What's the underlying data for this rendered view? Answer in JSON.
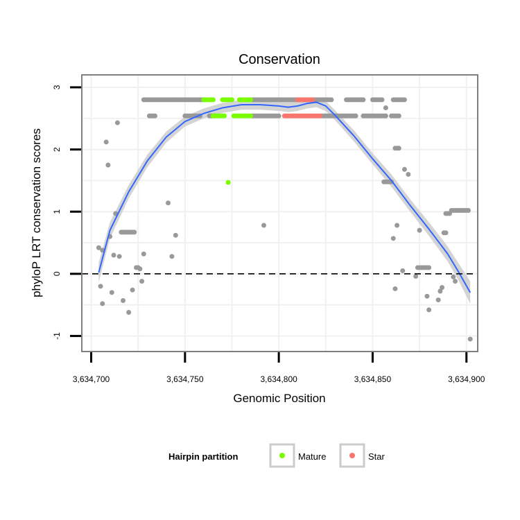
{
  "chart_data": {
    "type": "scatter",
    "title": "Conservation",
    "xlabel": "Genomic Position",
    "ylabel": "phyloP LRT conservation scores",
    "xlim": [
      3634695,
      3634906
    ],
    "ylim": [
      -1.25,
      3.2
    ],
    "x_ticks": [
      3634700,
      3634750,
      3634800,
      3634850,
      3634900
    ],
    "x_tick_labels": [
      "3,634,700",
      "3,634,750",
      "3,634,800",
      "3,634,850",
      "3,634,900"
    ],
    "y_ticks": [
      -1,
      0,
      1,
      2,
      3
    ],
    "y_tick_labels": [
      "-1",
      "0",
      "1",
      "2",
      "3"
    ],
    "grid": true,
    "reference_line": {
      "y": 0,
      "style": "dashed"
    },
    "colors": {
      "other": "#999999",
      "mature": "#7CFC00",
      "star": "#F8766D",
      "smooth": "#3366FF",
      "ribbon": "#cccccc",
      "panel_border": "#7f7f7f",
      "grid": "#f0f0f0"
    },
    "legend": {
      "title": "Hairpin partition",
      "position": "bottom",
      "entries": [
        {
          "label": "Mature",
          "color": "#7CFC00"
        },
        {
          "label": "Star",
          "color": "#F8766D"
        }
      ]
    },
    "series": [
      {
        "name": "Other",
        "points": [
          [
            3634704,
            0.42
          ],
          [
            3634705,
            -0.2
          ],
          [
            3634706,
            -0.48
          ],
          [
            3634706,
            0.38
          ],
          [
            3634708,
            2.12
          ],
          [
            3634709,
            1.75
          ],
          [
            3634710,
            0.6
          ],
          [
            3634711,
            -0.3
          ],
          [
            3634712,
            0.3
          ],
          [
            3634713,
            0.97
          ],
          [
            3634714,
            2.43
          ],
          [
            3634715,
            0.28
          ],
          [
            3634716,
            0.67
          ],
          [
            3634717,
            0.67
          ],
          [
            3634717,
            -0.43
          ],
          [
            3634718,
            0.67
          ],
          [
            3634719,
            0.67
          ],
          [
            3634720,
            -0.62
          ],
          [
            3634720,
            0.67
          ],
          [
            3634721,
            0.67
          ],
          [
            3634722,
            -0.26
          ],
          [
            3634722,
            0.67
          ],
          [
            3634723,
            0.67
          ],
          [
            3634724,
            0.1
          ],
          [
            3634725,
            0.1
          ],
          [
            3634726,
            0.08
          ],
          [
            3634727,
            -0.12
          ],
          [
            3634728,
            0.32
          ],
          [
            3634741,
            1.14
          ],
          [
            3634743,
            0.28
          ],
          [
            3634745,
            0.62
          ],
          [
            3634792,
            0.78
          ],
          [
            3634857,
            2.67
          ],
          [
            3634861,
            0.57
          ],
          [
            3634862,
            -0.24
          ],
          [
            3634863,
            0.78
          ],
          [
            3634866,
            0.05
          ],
          [
            3634867,
            1.68
          ],
          [
            3634869,
            1.6
          ],
          [
            3634875,
            0.7
          ],
          [
            3634873,
            -0.04
          ],
          [
            3634879,
            -0.36
          ],
          [
            3634880,
            -0.58
          ],
          [
            3634885,
            -0.42
          ],
          [
            3634886,
            -0.28
          ],
          [
            3634887,
            -0.22
          ],
          [
            3634888,
            0.66
          ],
          [
            3634889,
            0.66
          ],
          [
            3634893,
            -0.05
          ],
          [
            3634894,
            -0.12
          ],
          [
            3634902,
            -1.05
          ]
        ],
        "segments": [
          {
            "y": 2.8,
            "x": [
              3634728,
              3634760
            ]
          },
          {
            "y": 2.8,
            "x": [
              3634786,
              3634828
            ]
          },
          {
            "y": 2.8,
            "x": [
              3634836,
              3634845
            ]
          },
          {
            "y": 2.8,
            "x": [
              3634850,
              3634855
            ]
          },
          {
            "y": 2.8,
            "x": [
              3634861,
              3634867
            ]
          },
          {
            "y": 2.54,
            "x": [
              3634731,
              3634734
            ]
          },
          {
            "y": 2.54,
            "x": [
              3634750,
              3634758
            ]
          },
          {
            "y": 2.54,
            "x": [
              3634763,
              3634766
            ]
          },
          {
            "y": 2.54,
            "x": [
              3634786,
              3634800
            ]
          },
          {
            "y": 2.54,
            "x": [
              3634823,
              3634841
            ]
          },
          {
            "y": 2.54,
            "x": [
              3634845,
              3634857
            ]
          },
          {
            "y": 2.54,
            "x": [
              3634860,
              3634864
            ]
          },
          {
            "y": 2.02,
            "x": [
              3634862,
              3634864
            ]
          },
          {
            "y": 1.48,
            "x": [
              3634856,
              3634860
            ]
          },
          {
            "y": 0.1,
            "x": [
              3634874,
              3634880
            ]
          },
          {
            "y": 0.97,
            "x": [
              3634889,
              3634891
            ]
          },
          {
            "y": 1.02,
            "x": [
              3634892,
              3634901
            ]
          }
        ]
      },
      {
        "name": "Mature",
        "points": [
          [
            3634773,
            1.47
          ]
        ],
        "segments": [
          {
            "y": 2.8,
            "x": [
              3634760,
              3634765
            ]
          },
          {
            "y": 2.8,
            "x": [
              3634770,
              3634775
            ]
          },
          {
            "y": 2.8,
            "x": [
              3634779,
              3634785
            ]
          },
          {
            "y": 2.54,
            "x": [
              3634765,
              3634771
            ]
          },
          {
            "y": 2.54,
            "x": [
              3634776,
              3634785
            ]
          }
        ]
      },
      {
        "name": "Star",
        "points": [],
        "segments": [
          {
            "y": 2.8,
            "x": [
              3634810,
              3634818
            ]
          },
          {
            "y": 2.54,
            "x": [
              3634803,
              3634822
            ]
          }
        ]
      }
    ],
    "smooth": {
      "x": [
        3634704,
        3634710,
        3634720,
        3634730,
        3634740,
        3634750,
        3634760,
        3634770,
        3634780,
        3634790,
        3634800,
        3634805,
        3634810,
        3634815,
        3634820,
        3634825,
        3634830,
        3634840,
        3634850,
        3634860,
        3634870,
        3634880,
        3634890,
        3634896,
        3634902
      ],
      "y": [
        0.02,
        0.7,
        1.32,
        1.82,
        2.2,
        2.45,
        2.58,
        2.67,
        2.72,
        2.72,
        2.7,
        2.68,
        2.7,
        2.74,
        2.76,
        2.7,
        2.55,
        2.22,
        1.85,
        1.5,
        1.1,
        0.72,
        0.32,
        0.02,
        -0.3
      ],
      "se": [
        0.16,
        0.13,
        0.11,
        0.1,
        0.09,
        0.08,
        0.08,
        0.08,
        0.08,
        0.08,
        0.08,
        0.08,
        0.08,
        0.08,
        0.08,
        0.08,
        0.08,
        0.09,
        0.09,
        0.1,
        0.1,
        0.11,
        0.12,
        0.14,
        0.18
      ]
    }
  }
}
